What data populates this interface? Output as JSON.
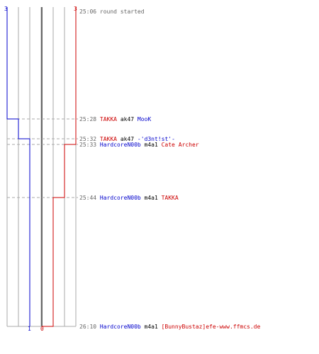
{
  "colors": {
    "blue": "#0000cc",
    "red": "#cc0000",
    "black": "#000000",
    "grey_text": "#666666",
    "grid": "#aaaaaa",
    "center_line": "#666666",
    "dashed": "#aaaaaa"
  },
  "scores": {
    "blue_start": "3",
    "red_start": "3",
    "blue_end": "1",
    "red_end": "0"
  },
  "events": [
    {
      "time": "25:06",
      "killer": "",
      "weapon": "",
      "victim": "",
      "text": "round started"
    },
    {
      "time": "25:28",
      "killer": "TAKKA",
      "killer_team": "red",
      "weapon": "ak47",
      "victim": "MooK",
      "victim_team": "blue"
    },
    {
      "time": "25:32",
      "killer": "TAKKA",
      "killer_team": "red",
      "weapon": "ak47",
      "victim": "-'d3nt!st'-",
      "victim_team": "blue"
    },
    {
      "time": "25:33",
      "killer": "HardcoreN00b",
      "killer_team": "blue",
      "weapon": "m4a1",
      "victim": "Cate Archer",
      "victim_team": "red"
    },
    {
      "time": "25:44",
      "killer": "HardcoreN00b",
      "killer_team": "blue",
      "weapon": "m4a1",
      "victim": "TAKKA",
      "victim_team": "red"
    },
    {
      "time": "26:10",
      "killer": "HardcoreN00b",
      "killer_team": "blue",
      "weapon": "m4a1",
      "victim": "[BunnyBustaz]efe-www.ffmcs.de",
      "victim_team": "red"
    }
  ]
}
